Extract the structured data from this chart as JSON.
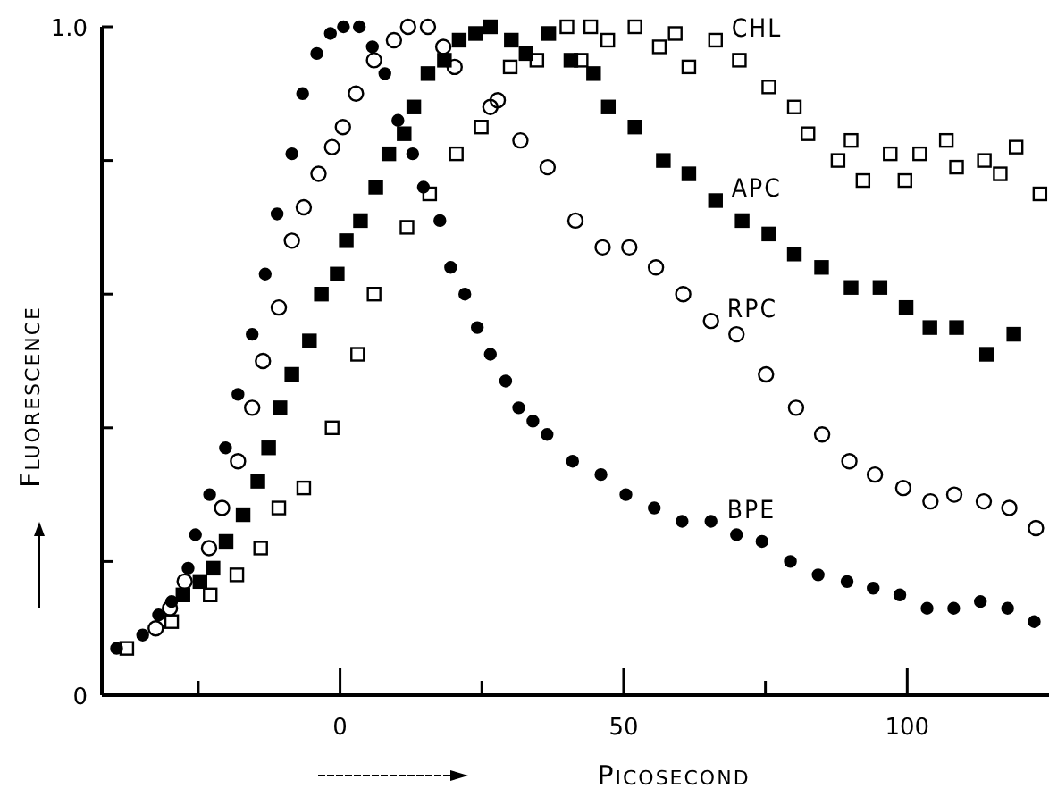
{
  "chart_data": {
    "type": "scatter",
    "xlabel": "Picosecond",
    "ylabel": "Fluorescence",
    "xlim": [
      -42,
      125
    ],
    "ylim": [
      0,
      1.0
    ],
    "xticks": [
      {
        "value": -25,
        "label": null
      },
      0,
      {
        "value": 25,
        "label": null
      },
      50,
      {
        "value": 75,
        "label": null
      },
      100
    ],
    "yticks": [
      0,
      {
        "value": 0.2,
        "label": null
      },
      {
        "value": 0.4,
        "label": null
      },
      {
        "value": 0.6,
        "label": null
      },
      {
        "value": 0.8,
        "label": null
      },
      {
        "value": 1.0,
        "label": "1.0"
      }
    ],
    "grid": false,
    "series": [
      {
        "name": "CHL",
        "color": "#000000",
        "marker": "square-open",
        "x": [
          -37.6,
          -29.7,
          -22.9,
          -18.2,
          -14,
          -10.8,
          -6.4,
          -1.4,
          3.1,
          6,
          11.8,
          15.8,
          20.5,
          24.9,
          30,
          34.7,
          40,
          42.5,
          44.2,
          47.2,
          52,
          56.3,
          59.1,
          61.5,
          66.2,
          70.4,
          75.6,
          80.1,
          82.5,
          87.8,
          90.1,
          92.2,
          97,
          99.6,
          102.2,
          106.9,
          108.7,
          113.6,
          116.4,
          119.2,
          123.4
        ],
        "values": [
          0.07,
          0.11,
          0.15,
          0.18,
          0.22,
          0.28,
          0.31,
          0.4,
          0.51,
          0.6,
          0.7,
          0.75,
          0.81,
          0.85,
          0.94,
          0.95,
          1.0,
          0.95,
          1.0,
          0.98,
          1.0,
          0.97,
          0.99,
          0.94,
          0.98,
          0.95,
          0.91,
          0.88,
          0.84,
          0.8,
          0.83,
          0.77,
          0.81,
          0.77,
          0.81,
          0.83,
          0.79,
          0.8,
          0.78,
          0.82,
          0.75
        ]
      },
      {
        "name": "APC",
        "color": "#000000",
        "marker": "square",
        "x": [
          -27.7,
          -24.7,
          -22.4,
          -20.1,
          -17.1,
          -14.5,
          -12.6,
          -10.6,
          -8.5,
          -5.4,
          -3.3,
          -0.5,
          1.1,
          3.6,
          6.3,
          8.6,
          11.3,
          13,
          15.5,
          18.4,
          21,
          23.9,
          26.5,
          30.2,
          32.8,
          36.8,
          40.7,
          44.7,
          47.3,
          52,
          57,
          61.5,
          66.2,
          70.9,
          75.6,
          80.1,
          84.9,
          90.1,
          95.2,
          99.8,
          104,
          108.7,
          114,
          118.8
        ],
        "values": [
          0.15,
          0.17,
          0.19,
          0.23,
          0.27,
          0.32,
          0.37,
          0.43,
          0.48,
          0.53,
          0.6,
          0.63,
          0.68,
          0.71,
          0.76,
          0.81,
          0.84,
          0.88,
          0.93,
          0.95,
          0.98,
          0.99,
          1.0,
          0.98,
          0.96,
          0.99,
          0.95,
          0.93,
          0.88,
          0.85,
          0.8,
          0.78,
          0.74,
          0.71,
          0.69,
          0.66,
          0.64,
          0.61,
          0.61,
          0.58,
          0.55,
          0.55,
          0.51,
          0.54
        ]
      },
      {
        "name": "RPC",
        "color": "#000000",
        "marker": "circle-open",
        "x": [
          -32.5,
          -30,
          -27.4,
          -23.1,
          -20.8,
          -18,
          -15.5,
          -13.6,
          -10.8,
          -8.5,
          -6.4,
          -3.8,
          -1.4,
          0.5,
          2.8,
          6,
          9.5,
          12,
          15.5,
          18.2,
          20.2,
          26.5,
          27.8,
          31.8,
          36.6,
          41.5,
          46.3,
          51,
          55.7,
          60.5,
          65.4,
          69.9,
          75.1,
          80.4,
          85,
          89.8,
          94.3,
          99.3,
          104.1,
          108.3,
          113.5,
          118,
          122.7
        ],
        "values": [
          0.1,
          0.13,
          0.17,
          0.22,
          0.28,
          0.35,
          0.43,
          0.5,
          0.58,
          0.68,
          0.73,
          0.78,
          0.82,
          0.85,
          0.9,
          0.95,
          0.98,
          1.0,
          1.0,
          0.97,
          0.94,
          0.88,
          0.89,
          0.83,
          0.79,
          0.71,
          0.67,
          0.67,
          0.64,
          0.6,
          0.56,
          0.54,
          0.48,
          0.43,
          0.39,
          0.35,
          0.33,
          0.31,
          0.29,
          0.3,
          0.29,
          0.28,
          0.25
        ]
      },
      {
        "name": "BPE",
        "color": "#000000",
        "marker": "circle",
        "x": [
          -39.4,
          -34.8,
          -32,
          -29.7,
          -26.8,
          -25.5,
          -23,
          -20.2,
          -18,
          -15.5,
          -13.2,
          -11.1,
          -8.5,
          -6.6,
          -4.1,
          -1.7,
          0.6,
          3.4,
          5.7,
          7.9,
          10.2,
          12.8,
          14.7,
          17.6,
          19.5,
          22,
          24.2,
          26.5,
          29.2,
          31.5,
          34,
          36.5,
          41,
          46,
          50.4,
          55.4,
          60.3,
          65.4,
          69.9,
          74.4,
          79.4,
          84.3,
          89.4,
          94,
          98.7,
          103.5,
          108.2,
          112.9,
          117.7,
          122.4
        ],
        "values": [
          0.07,
          0.09,
          0.12,
          0.14,
          0.19,
          0.24,
          0.3,
          0.37,
          0.45,
          0.54,
          0.63,
          0.72,
          0.81,
          0.9,
          0.96,
          0.99,
          1.0,
          1.0,
          0.97,
          0.93,
          0.86,
          0.81,
          0.76,
          0.71,
          0.64,
          0.6,
          0.55,
          0.51,
          0.47,
          0.43,
          0.41,
          0.39,
          0.35,
          0.33,
          0.3,
          0.28,
          0.26,
          0.26,
          0.24,
          0.23,
          0.2,
          0.18,
          0.17,
          0.16,
          0.15,
          0.13,
          0.13,
          0.14,
          0.13,
          0.11
        ]
      }
    ]
  }
}
